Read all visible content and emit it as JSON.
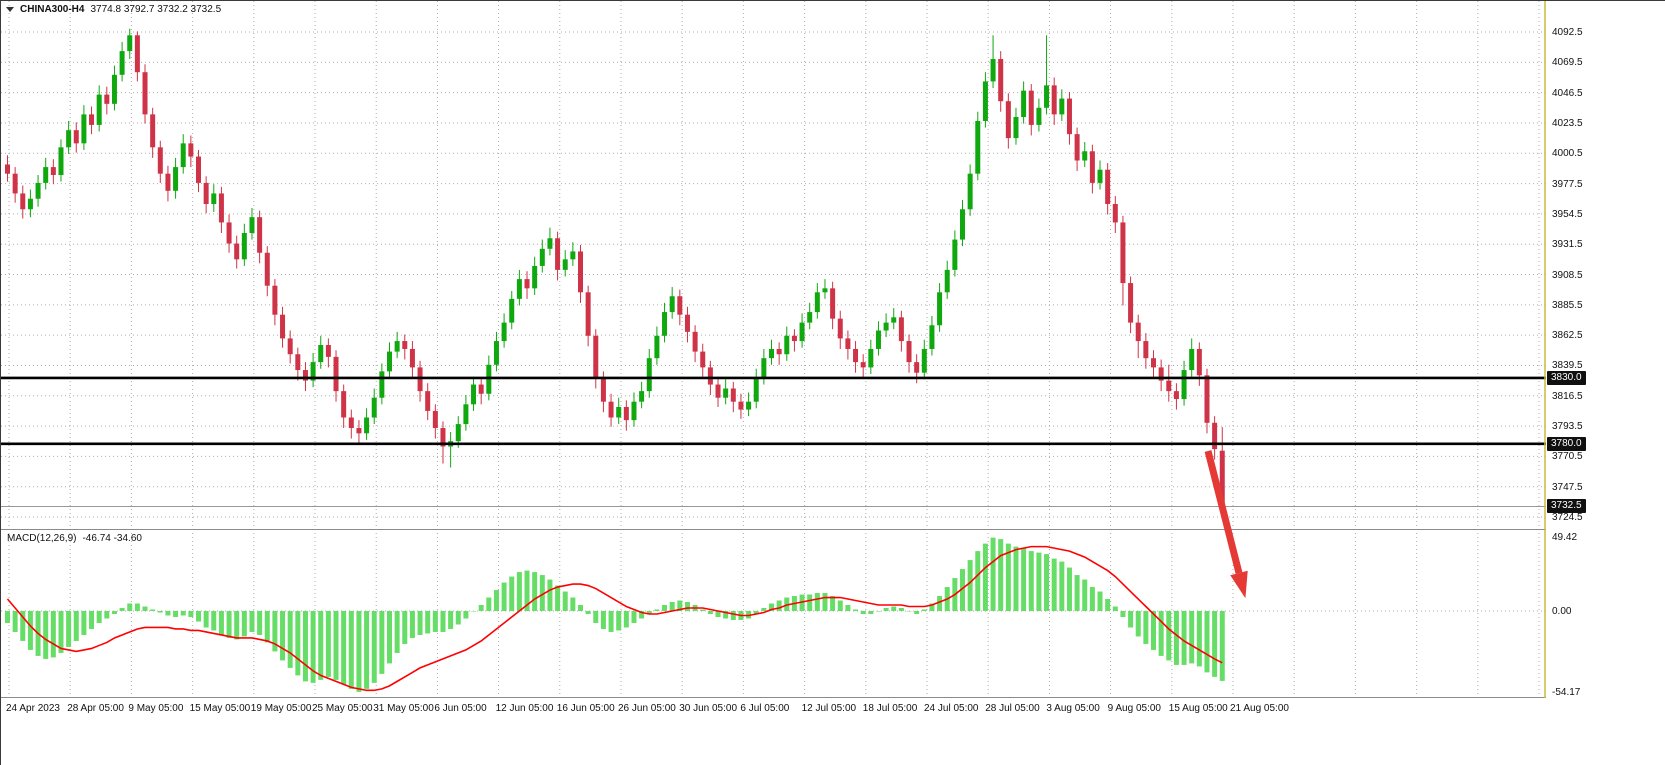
{
  "header": {
    "symbol": "CHINA300-H4",
    "ohlc": "3774.8 3792.7 3732.2 3732.5"
  },
  "chart_data": {
    "type": "candlestick",
    "symbol": "CHINA300",
    "timeframe": "H4",
    "current_bar": {
      "open": 3774.8,
      "high": 3792.7,
      "low": 3732.2,
      "close": 3732.5
    },
    "price_axis": {
      "labels": [
        "4092.5",
        "4069.5",
        "4046.5",
        "4023.5",
        "4000.5",
        "3977.5",
        "3954.5",
        "3931.5",
        "3908.5",
        "3885.5",
        "3862.5",
        "3839.5",
        "3816.5",
        "3793.5",
        "3770.5",
        "3747.5",
        "3724.5"
      ],
      "ylim": [
        3724.5,
        4092.5
      ]
    },
    "time_axis": {
      "labels": [
        "24 Apr 2023",
        "28 Apr 05:00",
        "9 May 05:00",
        "15 May 05:00",
        "19 May 05:00",
        "25 May 05:00",
        "31 May 05:00",
        "6 Jun 05:00",
        "12 Jun 05:00",
        "16 Jun 05:00",
        "26 Jun 05:00",
        "30 Jun 05:00",
        "6 Jul 05:00",
        "12 Jul 05:00",
        "18 Jul 05:00",
        "24 Jul 05:00",
        "28 Jul 05:00",
        "3 Aug 05:00",
        "9 Aug 05:00",
        "15 Aug 05:00",
        "21 Aug 05:00"
      ]
    },
    "levels": [
      {
        "label": "3830.0",
        "price": 3830.0
      },
      {
        "label": "3780.0",
        "price": 3780.0
      }
    ],
    "current_price": {
      "label": "3732.5",
      "price": 3732.5
    },
    "arrow": {
      "from": [
        1207,
        450
      ],
      "to": [
        1238,
        572
      ]
    },
    "colors": {
      "up": "#0fa80f",
      "down": "#cf3347",
      "macd_hist": "#66dd66",
      "macd_signal": "#ff0000",
      "arrow": "#e53935",
      "level": "#000000",
      "grid": "#adadad",
      "edge": "#c9bb3f",
      "tag_bg": "#101010"
    },
    "candles": [
      [
        3992,
        3999,
        3979,
        3985
      ],
      [
        3985,
        3990,
        3963,
        3970
      ],
      [
        3970,
        3976,
        3951,
        3958
      ],
      [
        3958,
        3973,
        3952,
        3966
      ],
      [
        3966,
        3984,
        3960,
        3978
      ],
      [
        3978,
        3997,
        3973,
        3990
      ],
      [
        3990,
        3996,
        3977,
        3984
      ],
      [
        3984,
        4011,
        3979,
        4005
      ],
      [
        4005,
        4025,
        4000,
        4018
      ],
      [
        4018,
        4024,
        4001,
        4008
      ],
      [
        4008,
        4037,
        4003,
        4030
      ],
      [
        4030,
        4036,
        4015,
        4022
      ],
      [
        4022,
        4052,
        4017,
        4045
      ],
      [
        4045,
        4051,
        4030,
        4038
      ],
      [
        4038,
        4067,
        4033,
        4060
      ],
      [
        4060,
        4085,
        4055,
        4078
      ],
      [
        4078,
        4095,
        4072,
        4090
      ],
      [
        4090,
        4093,
        4055,
        4062
      ],
      [
        4062,
        4068,
        4023,
        4030
      ],
      [
        4030,
        4035,
        3997,
        4005
      ],
      [
        4005,
        4010,
        3978,
        3985
      ],
      [
        3985,
        3991,
        3964,
        3972
      ],
      [
        3972,
        3997,
        3966,
        3990
      ],
      [
        3990,
        4015,
        3985,
        4008
      ],
      [
        4008,
        4014,
        3990,
        3998
      ],
      [
        3998,
        4003,
        3971,
        3978
      ],
      [
        3978,
        3983,
        3955,
        3962
      ],
      [
        3962,
        3977,
        3956,
        3970
      ],
      [
        3970,
        3975,
        3940,
        3948
      ],
      [
        3948,
        3954,
        3925,
        3932
      ],
      [
        3932,
        3938,
        3913,
        3920
      ],
      [
        3920,
        3947,
        3915,
        3940
      ],
      [
        3940,
        3959,
        3935,
        3952
      ],
      [
        3952,
        3957,
        3917,
        3925
      ],
      [
        3925,
        3930,
        3892,
        3900
      ],
      [
        3900,
        3905,
        3870,
        3878
      ],
      [
        3878,
        3884,
        3853,
        3860
      ],
      [
        3860,
        3866,
        3841,
        3848
      ],
      [
        3848,
        3853,
        3828,
        3836
      ],
      [
        3836,
        3842,
        3820,
        3828
      ],
      [
        3828,
        3849,
        3823,
        3842
      ],
      [
        3842,
        3862,
        3837,
        3855
      ],
      [
        3855,
        3860,
        3838,
        3846
      ],
      [
        3846,
        3851,
        3812,
        3820
      ],
      [
        3820,
        3825,
        3792,
        3800
      ],
      [
        3800,
        3806,
        3784,
        3792
      ],
      [
        3792,
        3798,
        3780,
        3788
      ],
      [
        3788,
        3807,
        3783,
        3800
      ],
      [
        3800,
        3822,
        3795,
        3815
      ],
      [
        3815,
        3841,
        3810,
        3835
      ],
      [
        3835,
        3857,
        3830,
        3850
      ],
      [
        3850,
        3865,
        3845,
        3858
      ],
      [
        3858,
        3863,
        3844,
        3852
      ],
      [
        3852,
        3858,
        3830,
        3838
      ],
      [
        3838,
        3843,
        3812,
        3820
      ],
      [
        3820,
        3826,
        3798,
        3805
      ],
      [
        3805,
        3810,
        3784,
        3792
      ],
      [
        3792,
        3797,
        3765,
        3778
      ],
      [
        3778,
        3789,
        3762,
        3782
      ],
      [
        3782,
        3801,
        3777,
        3795
      ],
      [
        3795,
        3817,
        3790,
        3810
      ],
      [
        3810,
        3831,
        3805,
        3825
      ],
      [
        3825,
        3830,
        3810,
        3818
      ],
      [
        3818,
        3847,
        3813,
        3840
      ],
      [
        3840,
        3865,
        3835,
        3858
      ],
      [
        3858,
        3879,
        3853,
        3872
      ],
      [
        3872,
        3896,
        3867,
        3890
      ],
      [
        3890,
        3912,
        3885,
        3905
      ],
      [
        3905,
        3911,
        3890,
        3898
      ],
      [
        3898,
        3922,
        3893,
        3915
      ],
      [
        3915,
        3935,
        3910,
        3928
      ],
      [
        3928,
        3944,
        3923,
        3936
      ],
      [
        3936,
        3941,
        3904,
        3912
      ],
      [
        3912,
        3927,
        3907,
        3920
      ],
      [
        3920,
        3933,
        3915,
        3926
      ],
      [
        3926,
        3931,
        3887,
        3895
      ],
      [
        3895,
        3900,
        3854,
        3862
      ],
      [
        3862,
        3867,
        3822,
        3830
      ],
      [
        3830,
        3835,
        3804,
        3812
      ],
      [
        3812,
        3818,
        3793,
        3800
      ],
      [
        3800,
        3815,
        3795,
        3808
      ],
      [
        3808,
        3813,
        3790,
        3798
      ],
      [
        3798,
        3819,
        3793,
        3812
      ],
      [
        3812,
        3827,
        3807,
        3820
      ],
      [
        3820,
        3852,
        3815,
        3845
      ],
      [
        3845,
        3869,
        3840,
        3862
      ],
      [
        3862,
        3887,
        3857,
        3880
      ],
      [
        3880,
        3899,
        3875,
        3892
      ],
      [
        3892,
        3897,
        3870,
        3878
      ],
      [
        3878,
        3884,
        3857,
        3865
      ],
      [
        3865,
        3870,
        3842,
        3850
      ],
      [
        3850,
        3856,
        3831,
        3838
      ],
      [
        3838,
        3843,
        3817,
        3825
      ],
      [
        3825,
        3831,
        3808,
        3815
      ],
      [
        3815,
        3829,
        3810,
        3822
      ],
      [
        3822,
        3827,
        3804,
        3812
      ],
      [
        3812,
        3818,
        3799,
        3806
      ],
      [
        3806,
        3819,
        3801,
        3812
      ],
      [
        3812,
        3837,
        3807,
        3830
      ],
      [
        3830,
        3852,
        3825,
        3845
      ],
      [
        3845,
        3859,
        3840,
        3852
      ],
      [
        3852,
        3857,
        3840,
        3848
      ],
      [
        3848,
        3869,
        3843,
        3862
      ],
      [
        3862,
        3867,
        3850,
        3858
      ],
      [
        3858,
        3879,
        3853,
        3872
      ],
      [
        3872,
        3887,
        3867,
        3880
      ],
      [
        3880,
        3902,
        3875,
        3895
      ],
      [
        3895,
        3905,
        3890,
        3898
      ],
      [
        3898,
        3903,
        3867,
        3875
      ],
      [
        3875,
        3881,
        3852,
        3860
      ],
      [
        3860,
        3866,
        3844,
        3852
      ],
      [
        3852,
        3858,
        3834,
        3842
      ],
      [
        3842,
        3848,
        3830,
        3838
      ],
      [
        3838,
        3859,
        3833,
        3852
      ],
      [
        3852,
        3873,
        3847,
        3866
      ],
      [
        3866,
        3879,
        3861,
        3872
      ],
      [
        3872,
        3883,
        3867,
        3876
      ],
      [
        3876,
        3881,
        3850,
        3858
      ],
      [
        3858,
        3863,
        3834,
        3842
      ],
      [
        3842,
        3848,
        3826,
        3834
      ],
      [
        3834,
        3859,
        3829,
        3852
      ],
      [
        3852,
        3877,
        3847,
        3870
      ],
      [
        3870,
        3902,
        3865,
        3895
      ],
      [
        3895,
        3919,
        3890,
        3912
      ],
      [
        3912,
        3942,
        3907,
        3935
      ],
      [
        3935,
        3965,
        3930,
        3958
      ],
      [
        3958,
        3992,
        3953,
        3985
      ],
      [
        3985,
        4032,
        3980,
        4025
      ],
      [
        4025,
        4062,
        4020,
        4055
      ],
      [
        4055,
        4090,
        4050,
        4072
      ],
      [
        4072,
        4078,
        4032,
        4040
      ],
      [
        4040,
        4046,
        4004,
        4012
      ],
      [
        4012,
        4035,
        4007,
        4028
      ],
      [
        4028,
        4055,
        4023,
        4048
      ],
      [
        4048,
        4053,
        4014,
        4022
      ],
      [
        4022,
        4042,
        4017,
        4035
      ],
      [
        4035,
        4090,
        4030,
        4052
      ],
      [
        4052,
        4058,
        4022,
        4030
      ],
      [
        4030,
        4049,
        4025,
        4042
      ],
      [
        4042,
        4047,
        4007,
        4015
      ],
      [
        4015,
        4020,
        3987,
        3995
      ],
      [
        3995,
        4009,
        3990,
        4002
      ],
      [
        4002,
        4007,
        3970,
        3978
      ],
      [
        3978,
        3995,
        3973,
        3988
      ],
      [
        3988,
        3993,
        3954,
        3962
      ],
      [
        3962,
        3968,
        3940,
        3948
      ],
      [
        3948,
        3953,
        3885,
        3902
      ],
      [
        3902,
        3907,
        3864,
        3872
      ],
      [
        3872,
        3878,
        3845,
        3858
      ],
      [
        3858,
        3864,
        3837,
        3845
      ],
      [
        3845,
        3851,
        3830,
        3838
      ],
      [
        3838,
        3844,
        3820,
        3828
      ],
      [
        3828,
        3840,
        3812,
        3820
      ],
      [
        3820,
        3826,
        3806,
        3814
      ],
      [
        3814,
        3843,
        3809,
        3836
      ],
      [
        3836,
        3860,
        3831,
        3852
      ],
      [
        3852,
        3857,
        3824,
        3832
      ],
      [
        3832,
        3837,
        3788,
        3796
      ],
      [
        3796,
        3801,
        3768,
        3776
      ],
      [
        3774.8,
        3792.7,
        3732.2,
        3732.5
      ]
    ],
    "macd": {
      "label": "MACD(12,26,9)",
      "values_text": "-46.74 -34.60",
      "main_value": -46.74,
      "signal_value": -34.6,
      "scale_labels": [
        "49.42",
        "0.00",
        "-54.17"
      ],
      "scale_max": 49.42,
      "scale_min": -54.17,
      "histogram": [
        -8,
        -14,
        -20,
        -26,
        -30,
        -32,
        -31,
        -28,
        -24,
        -20,
        -16,
        -12,
        -8,
        -5,
        -2,
        2,
        5,
        5,
        3,
        1,
        -1,
        -3,
        -4,
        -3,
        -4,
        -7,
        -11,
        -13,
        -16,
        -18,
        -19,
        -17,
        -14,
        -16,
        -21,
        -27,
        -33,
        -38,
        -43,
        -47,
        -48,
        -46,
        -44,
        -46,
        -49,
        -52,
        -54,
        -52,
        -48,
        -42,
        -35,
        -28,
        -22,
        -18,
        -16,
        -15,
        -14,
        -14,
        -12,
        -9,
        -5,
        0,
        4,
        9,
        14,
        19,
        23,
        26,
        27,
        26,
        24,
        21,
        17,
        13,
        9,
        4,
        -2,
        -8,
        -12,
        -14,
        -13,
        -11,
        -8,
        -5,
        -2,
        1,
        4,
        6,
        7,
        6,
        4,
        1,
        -2,
        -4,
        -5,
        -6,
        -6,
        -5,
        -2,
        2,
        5,
        7,
        9,
        10,
        11,
        11,
        12,
        12,
        10,
        7,
        4,
        1,
        -2,
        -2,
        0,
        2,
        3,
        2,
        0,
        -2,
        1,
        5,
        10,
        16,
        22,
        28,
        34,
        40,
        45,
        49,
        48,
        45,
        43,
        42,
        40,
        39,
        38,
        35,
        33,
        29,
        24,
        21,
        16,
        13,
        8,
        3,
        -4,
        -11,
        -17,
        -22,
        -26,
        -30,
        -33,
        -36,
        -36,
        -35,
        -37,
        -41,
        -44,
        -46.7
      ],
      "signal": [
        8,
        2,
        -4,
        -10,
        -15,
        -19,
        -22,
        -25,
        -26,
        -27,
        -26,
        -25,
        -23,
        -21,
        -18,
        -16,
        -14,
        -12,
        -11,
        -11,
        -11,
        -11,
        -12,
        -12,
        -13,
        -13,
        -14,
        -15,
        -16,
        -17,
        -18,
        -18,
        -18,
        -19,
        -20,
        -22,
        -25,
        -28,
        -32,
        -36,
        -40,
        -43,
        -45,
        -47,
        -49,
        -51,
        -52,
        -53,
        -53,
        -52,
        -50,
        -47,
        -44,
        -41,
        -38,
        -36,
        -34,
        -32,
        -30,
        -28,
        -26,
        -23,
        -20,
        -16,
        -12,
        -8,
        -4,
        0,
        4,
        8,
        11,
        14,
        16,
        17,
        18,
        18,
        17,
        15,
        12,
        9,
        6,
        3,
        1,
        -1,
        -2,
        -2,
        -1,
        0,
        1,
        2,
        2,
        2,
        1,
        0,
        -1,
        -2,
        -3,
        -3,
        -2,
        -1,
        1,
        2,
        4,
        5,
        6,
        7,
        8,
        9,
        9,
        9,
        8,
        7,
        6,
        5,
        4,
        4,
        4,
        4,
        3,
        3,
        3,
        4,
        6,
        8,
        11,
        15,
        19,
        24,
        29,
        33,
        37,
        39,
        41,
        42,
        43,
        43,
        43,
        42,
        41,
        40,
        38,
        36,
        33,
        30,
        27,
        23,
        18,
        13,
        8,
        3,
        -2,
        -7,
        -12,
        -16,
        -20,
        -23,
        -26,
        -29,
        -32,
        -34.6
      ]
    }
  }
}
